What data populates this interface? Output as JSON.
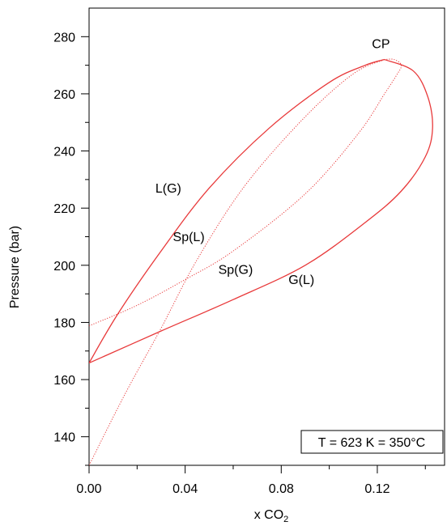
{
  "chart_data": {
    "type": "line",
    "title": "",
    "xlabel": "x CO",
    "xlabel_subscript": "2",
    "ylabel": "Pressure (bar)",
    "xlim": [
      0.0,
      0.148
    ],
    "ylim": [
      130,
      290
    ],
    "xticks": [
      "0.00",
      "0.04",
      "0.08",
      "0.12"
    ],
    "yticks": [
      "140",
      "160",
      "180",
      "200",
      "220",
      "240",
      "260",
      "280"
    ],
    "xtick_values": [
      0.0,
      0.04,
      0.08,
      0.12
    ],
    "ytick_values": [
      140,
      160,
      180,
      200,
      220,
      240,
      260,
      280
    ],
    "minor_xtick_values": [
      0.02,
      0.06,
      0.1,
      0.14
    ],
    "minor_ytick_values": [
      130,
      150,
      170,
      190,
      210,
      230,
      250,
      270
    ],
    "color": "#e8393a",
    "series": [
      {
        "name": "L(G)",
        "style": "solid",
        "x": [
          0.0,
          0.012,
          0.03,
          0.05,
          0.075,
          0.1,
          0.115,
          0.123
        ],
        "y": [
          165.8,
          183,
          205,
          227,
          248,
          264,
          270,
          272
        ]
      },
      {
        "name": "G(L)",
        "style": "solid",
        "x": [
          0.123,
          0.135,
          0.141,
          0.143,
          0.14,
          0.13,
          0.115,
          0.09,
          0.06,
          0.03,
          0.0
        ],
        "y": [
          272,
          268,
          259,
          248,
          238,
          226,
          215,
          200,
          188,
          177,
          165.8
        ]
      },
      {
        "name": "Sp(L)",
        "style": "dotted",
        "x": [
          0.0,
          0.015,
          0.03,
          0.045,
          0.065,
          0.09,
          0.11,
          0.123
        ],
        "y": [
          130,
          155,
          178,
          202,
          228,
          252,
          267,
          272
        ]
      },
      {
        "name": "Sp(G)",
        "style": "dotted",
        "x": [
          0.0,
          0.02,
          0.04,
          0.06,
          0.09,
          0.112,
          0.123,
          0.128,
          0.13,
          0.127,
          0.123
        ],
        "y": [
          178.8,
          186,
          195,
          205,
          225,
          246,
          260,
          266.5,
          270,
          272,
          272
        ]
      }
    ],
    "annotations": [
      {
        "text": "CP",
        "x": 0.1215,
        "y": 276
      },
      {
        "text": "L(G)",
        "x": 0.033,
        "y": 225.5
      },
      {
        "text": "Sp(L)",
        "x": 0.0415,
        "y": 208.5
      },
      {
        "text": "Sp(G)",
        "x": 0.061,
        "y": 197
      },
      {
        "text": "G(L)",
        "x": 0.0884,
        "y": 193.5
      }
    ],
    "legend_box": "T = 623 K = 350°C",
    "legend_position": "bottom-right",
    "grid": false
  }
}
